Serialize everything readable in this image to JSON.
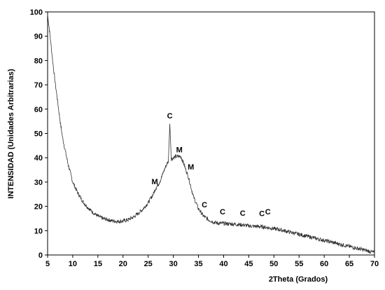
{
  "chart_data": {
    "type": "line",
    "title": "",
    "xlabel": "2Theta (Grados)",
    "ylabel": "INTENSIDAD (Unidades Arbitrarias)",
    "xlim": [
      5,
      70
    ],
    "ylim": [
      0,
      100
    ],
    "x_ticks": [
      "5",
      "10",
      "15",
      "20",
      "25",
      "30",
      "35",
      "40",
      "45",
      "50",
      "55",
      "60",
      "65",
      "70"
    ],
    "y_ticks": [
      "0",
      "10",
      "20",
      "30",
      "40",
      "50",
      "60",
      "70",
      "80",
      "90",
      "100"
    ],
    "grid": false,
    "line_color": "#333333",
    "series": [
      {
        "x": [
          5,
          5.5,
          6,
          6.5,
          7,
          7.5,
          8,
          8.5,
          9,
          9.5,
          10,
          11,
          12,
          13,
          14,
          15,
          16,
          17,
          18,
          19,
          20,
          21,
          22,
          23,
          24,
          25,
          26,
          26.5,
          27,
          27.5,
          28,
          28.5,
          29,
          29.3,
          29.6,
          30,
          30.5,
          31,
          31.5,
          32,
          32.5,
          33,
          33.5,
          34,
          35,
          36,
          37,
          38,
          39,
          40,
          41,
          42,
          43,
          44,
          45,
          46,
          47,
          48,
          49,
          50,
          51,
          52,
          53,
          54,
          55,
          56,
          57,
          58,
          59,
          60,
          61,
          62,
          63,
          64,
          65,
          66,
          67,
          68,
          69,
          70
        ],
        "y": [
          99,
          90,
          80,
          71,
          63,
          55,
          48,
          43,
          38,
          34,
          30,
          25.5,
          22,
          19.5,
          17.5,
          16,
          15,
          14.5,
          14,
          13.8,
          14,
          14.5,
          15.5,
          17,
          19,
          21.5,
          25,
          27.5,
          29,
          31,
          34,
          36.5,
          38.5,
          54,
          39.5,
          40,
          40.5,
          40.5,
          40.5,
          38,
          35,
          32,
          28,
          24,
          19,
          16,
          14.5,
          13.5,
          13,
          13,
          12.8,
          12.7,
          12.5,
          12.3,
          12,
          11.8,
          11.7,
          11.5,
          11.2,
          10.8,
          10.5,
          10,
          9.5,
          9,
          8.5,
          8,
          7.5,
          7,
          6.5,
          6,
          5.5,
          5,
          4.5,
          4,
          3.5,
          3,
          2.5,
          2,
          1.5,
          1
        ]
      }
    ],
    "annotations": [
      {
        "text": "C",
        "x": 29.3,
        "y": 55
      },
      {
        "text": "M",
        "x": 26.3,
        "y": 28
      },
      {
        "text": "M",
        "x": 31.2,
        "y": 41
      },
      {
        "text": "M",
        "x": 33.5,
        "y": 34
      },
      {
        "text": "C",
        "x": 36.2,
        "y": 18.5
      },
      {
        "text": "C",
        "x": 39.8,
        "y": 15.5
      },
      {
        "text": "C",
        "x": 43.8,
        "y": 15
      },
      {
        "text": "C",
        "x": 47.6,
        "y": 14.8
      },
      {
        "text": "C",
        "x": 48.8,
        "y": 15.5
      }
    ]
  }
}
